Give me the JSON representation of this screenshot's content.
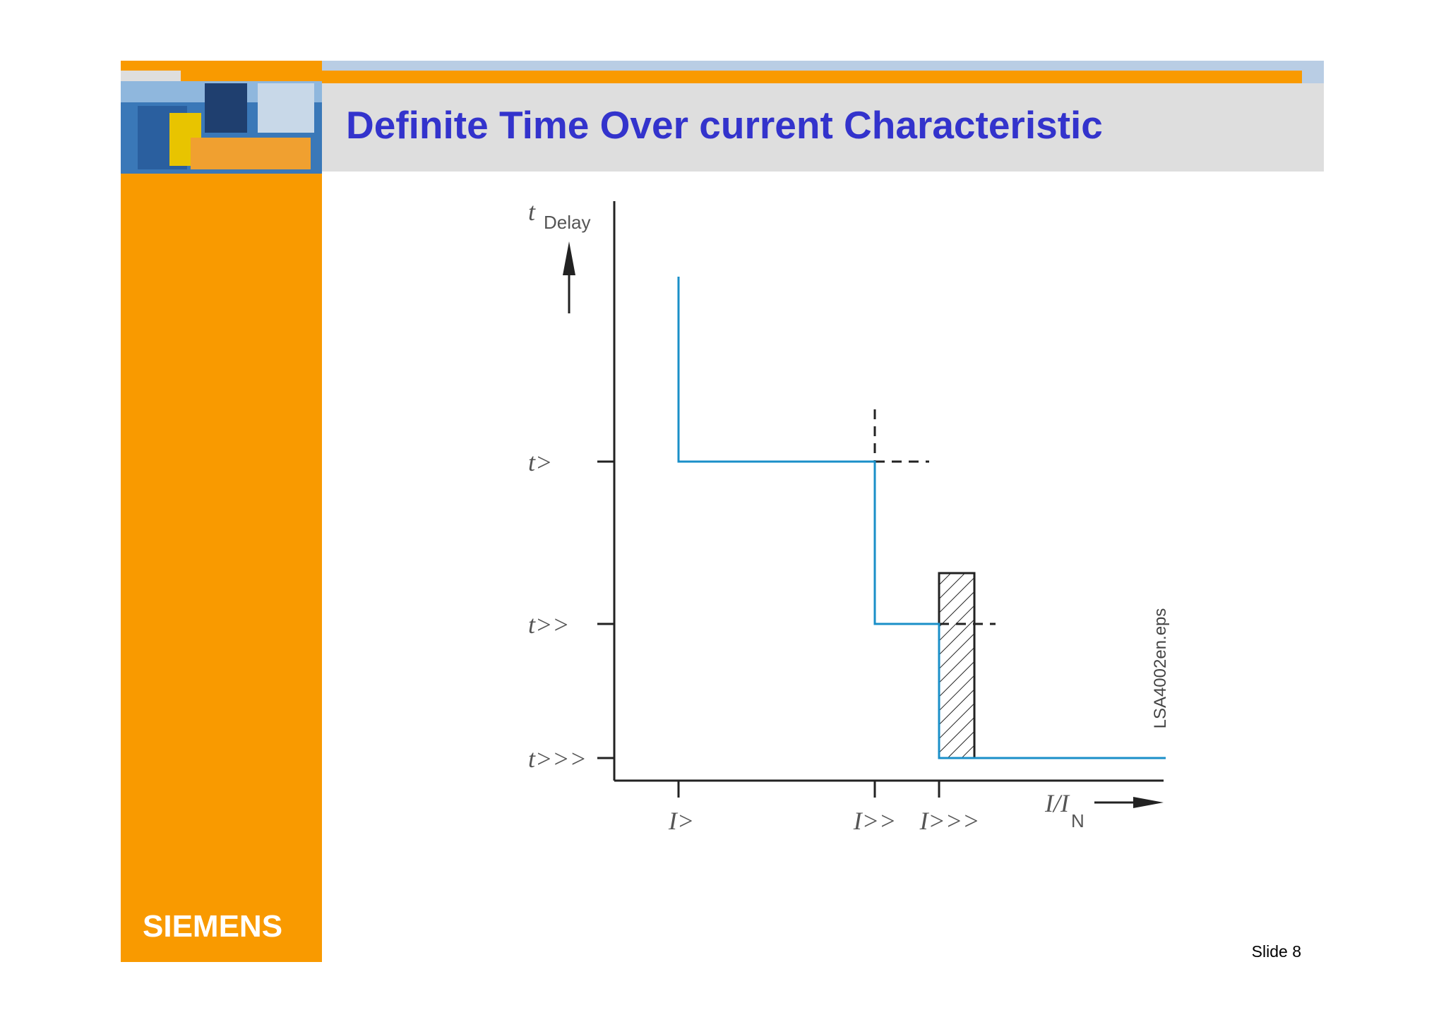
{
  "header": {
    "title": "Definite Time Over current Characteristic"
  },
  "diagram": {
    "y_axis_label": "t",
    "y_axis_subscript": "Delay",
    "y_levels": [
      "t>",
      "t>>",
      "t>>>"
    ],
    "x_levels": [
      "I>",
      "I>>",
      "I>>>"
    ],
    "x_axis_label": "I/I",
    "x_axis_subscript": "N",
    "figure_id": "LSA4002en.eps"
  },
  "logo": "SIEMENS",
  "footer": "Slide 8"
}
